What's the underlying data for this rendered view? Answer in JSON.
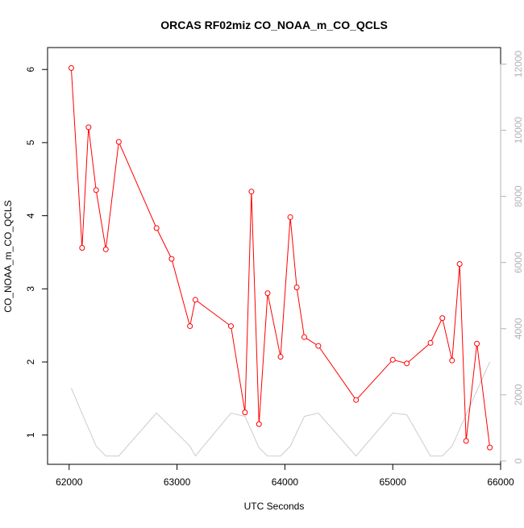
{
  "chart_data": {
    "type": "line",
    "title": "ORCAS RF02miz CO_NOAA_m_CO_QCLS",
    "xlabel": "UTC Seconds",
    "ylabel": "CO_NOAA_m_CO_QCLS",
    "xlim": [
      61800,
      66000
    ],
    "ylim": [
      0.6,
      6.3
    ],
    "y2lim": [
      -100,
      12500
    ],
    "grid": false,
    "x_ticks": [
      62000,
      63000,
      64000,
      65000,
      66000
    ],
    "y_ticks": [
      1,
      2,
      3,
      4,
      5,
      6
    ],
    "y2_ticks": [
      0,
      2000,
      4000,
      6000,
      8000,
      10000,
      12000
    ],
    "series": [
      {
        "axis": "left",
        "color": "#ff0000",
        "marker": "open-circle",
        "x": [
          62020,
          62120,
          62180,
          62250,
          62340,
          62460,
          62810,
          62950,
          63120,
          63170,
          63500,
          63630,
          63690,
          63760,
          63840,
          63960,
          64050,
          64110,
          64180,
          64310,
          64660,
          65000,
          65130,
          65350,
          65460,
          65550,
          65620,
          65680,
          65780,
          65900
        ],
        "values": [
          6.02,
          3.56,
          5.21,
          4.35,
          3.54,
          5.01,
          3.83,
          3.41,
          2.49,
          2.85,
          2.49,
          1.31,
          4.33,
          1.15,
          2.94,
          2.07,
          3.98,
          3.02,
          2.34,
          2.22,
          1.48,
          2.03,
          1.98,
          2.26,
          2.6,
          2.02,
          3.34,
          0.92,
          2.25,
          0.83
        ]
      },
      {
        "axis": "right",
        "color": "#cccccc",
        "marker": "none",
        "x": [
          62020,
          62250,
          62340,
          62460,
          62810,
          63120,
          63170,
          63500,
          63630,
          63760,
          63840,
          63960,
          64050,
          64180,
          64310,
          64660,
          65000,
          65130,
          65350,
          65460,
          65550,
          65900
        ],
        "values": [
          2200,
          450,
          150,
          150,
          1450,
          450,
          150,
          1450,
          1350,
          400,
          150,
          150,
          450,
          1350,
          1450,
          150,
          1450,
          1400,
          150,
          150,
          450,
          3000
        ]
      }
    ]
  }
}
